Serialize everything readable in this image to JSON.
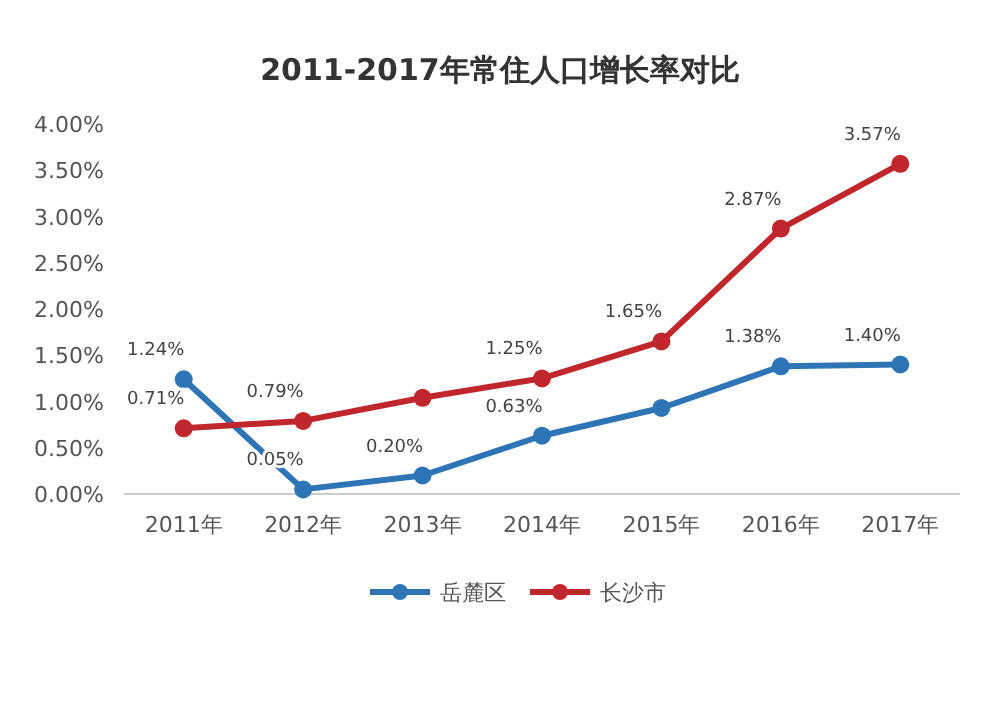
{
  "chart_data": {
    "type": "line",
    "title": "2011-2017年常住人口增长率对比",
    "categories": [
      "2011年",
      "2012年",
      "2013年",
      "2014年",
      "2015年",
      "2016年",
      "2017年"
    ],
    "series": [
      {
        "name": "岳麓区",
        "color": "#2e75b6",
        "values": [
          1.24,
          0.05,
          0.2,
          0.63,
          0.93,
          1.38,
          1.4
        ],
        "value_labels": [
          "1.24%",
          "0.05%",
          "0.20%",
          "0.63%",
          null,
          "1.38%",
          "1.40%"
        ]
      },
      {
        "name": "长沙市",
        "color": "#c0272d",
        "values": [
          0.71,
          0.79,
          1.04,
          1.25,
          1.65,
          2.87,
          3.57
        ],
        "value_labels": [
          "0.71%",
          "0.79%",
          null,
          "1.25%",
          "1.65%",
          "2.87%",
          "3.57%"
        ]
      }
    ],
    "ylim": [
      0,
      4
    ],
    "yticks": [
      {
        "value": 0,
        "label": "0.00%"
      },
      {
        "value": 0.5,
        "label": "0.50%"
      },
      {
        "value": 1,
        "label": "1.00%"
      },
      {
        "value": 1.5,
        "label": "1.50%"
      },
      {
        "value": 2,
        "label": "2.00%"
      },
      {
        "value": 2.5,
        "label": "2.50%"
      },
      {
        "value": 3,
        "label": "3.00%"
      },
      {
        "value": 3.5,
        "label": "3.50%"
      },
      {
        "value": 4,
        "label": "4.00%"
      }
    ],
    "grid": false,
    "legend": "bottom",
    "marker": "circle",
    "line_style": "solid"
  }
}
